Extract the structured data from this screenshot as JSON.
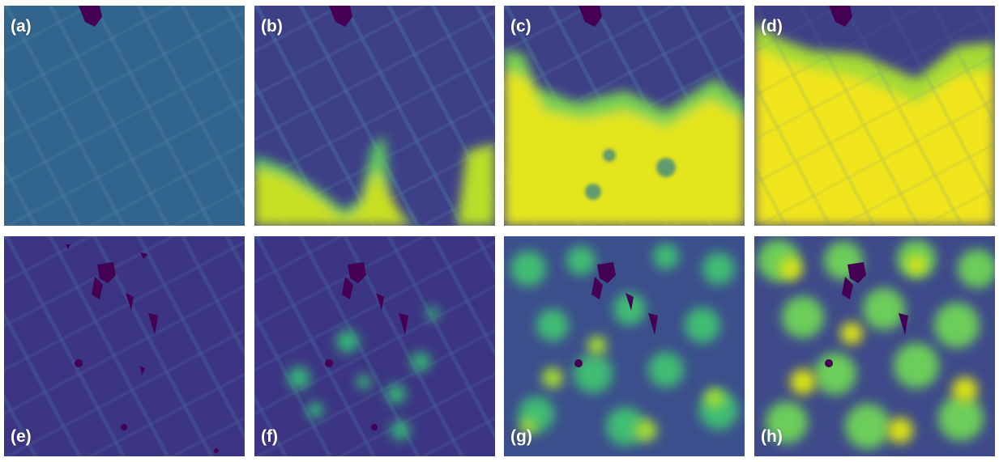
{
  "figure": {
    "panels": [
      {
        "id": "a",
        "label": "(a)"
      },
      {
        "id": "b",
        "label": "(b)"
      },
      {
        "id": "c",
        "label": "(c)"
      },
      {
        "id": "d",
        "label": "(d)"
      },
      {
        "id": "e",
        "label": "(e)"
      },
      {
        "id": "f",
        "label": "(f)"
      },
      {
        "id": "g",
        "label": "(g)"
      },
      {
        "id": "h",
        "label": "(h)"
      }
    ],
    "colors": {
      "background": "#ffffff",
      "label_text": "#ffffff",
      "colormap_low": "#440154",
      "colormap_mid_low": "#3b528b",
      "colormap_mid": "#21918c",
      "colormap_mid_high": "#5ec962",
      "colormap_high": "#fde725"
    }
  }
}
